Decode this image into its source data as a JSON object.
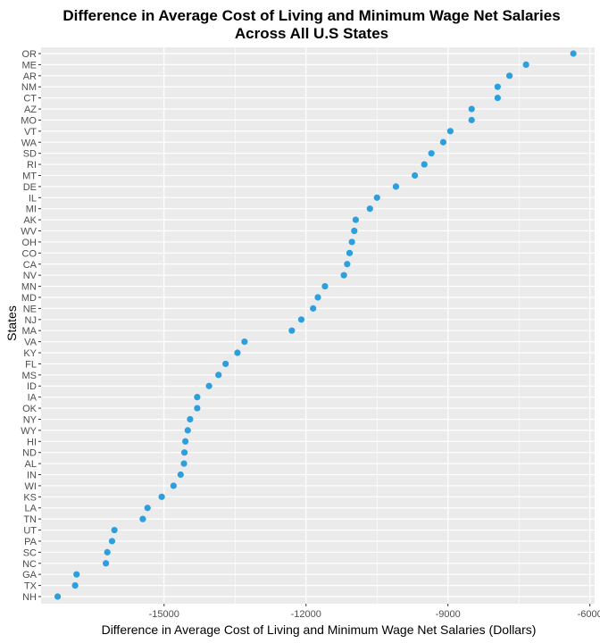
{
  "chart_data": {
    "type": "scatter",
    "title_line1": "Difference in Average Cost of Living and Minimum Wage Net Salaries",
    "title_line2": "Across All U.S States",
    "xlabel": "Difference in Average Cost of Living and Minimum Wage Net Salaries (Dollars)",
    "ylabel": "States",
    "xlim": [
      -17600,
      -5900
    ],
    "x_ticks": [
      -15000,
      -12000,
      -9000,
      -6000
    ],
    "x_tick_labels": [
      "-15000",
      "-12000",
      "-9000",
      "-6000"
    ],
    "grid": true,
    "point_color": "#2c9fdf",
    "panel_color": "#ebebeb",
    "grid_color": "#ffffff",
    "points": [
      {
        "state": "OR",
        "value": -6350
      },
      {
        "state": "ME",
        "value": -7350
      },
      {
        "state": "AR",
        "value": -7700
      },
      {
        "state": "NM",
        "value": -7950
      },
      {
        "state": "CT",
        "value": -7950
      },
      {
        "state": "AZ",
        "value": -8500
      },
      {
        "state": "MO",
        "value": -8500
      },
      {
        "state": "VT",
        "value": -8950
      },
      {
        "state": "WA",
        "value": -9100
      },
      {
        "state": "SD",
        "value": -9350
      },
      {
        "state": "RI",
        "value": -9500
      },
      {
        "state": "MT",
        "value": -9700
      },
      {
        "state": "DE",
        "value": -10100
      },
      {
        "state": "IL",
        "value": -10500
      },
      {
        "state": "MI",
        "value": -10650
      },
      {
        "state": "AK",
        "value": -10950
      },
      {
        "state": "WV",
        "value": -10980
      },
      {
        "state": "OH",
        "value": -11030
      },
      {
        "state": "CO",
        "value": -11080
      },
      {
        "state": "CA",
        "value": -11130
      },
      {
        "state": "NV",
        "value": -11200
      },
      {
        "state": "MN",
        "value": -11600
      },
      {
        "state": "MD",
        "value": -11750
      },
      {
        "state": "NE",
        "value": -11850
      },
      {
        "state": "NJ",
        "value": -12100
      },
      {
        "state": "MA",
        "value": -12300
      },
      {
        "state": "VA",
        "value": -13300
      },
      {
        "state": "KY",
        "value": -13450
      },
      {
        "state": "FL",
        "value": -13700
      },
      {
        "state": "MS",
        "value": -13850
      },
      {
        "state": "ID",
        "value": -14050
      },
      {
        "state": "IA",
        "value": -14300
      },
      {
        "state": "OK",
        "value": -14300
      },
      {
        "state": "NY",
        "value": -14450
      },
      {
        "state": "WY",
        "value": -14500
      },
      {
        "state": "HI",
        "value": -14550
      },
      {
        "state": "ND",
        "value": -14570
      },
      {
        "state": "AL",
        "value": -14580
      },
      {
        "state": "IN",
        "value": -14650
      },
      {
        "state": "WI",
        "value": -14800
      },
      {
        "state": "KS",
        "value": -15050
      },
      {
        "state": "LA",
        "value": -15350
      },
      {
        "state": "TN",
        "value": -15450
      },
      {
        "state": "UT",
        "value": -16050
      },
      {
        "state": "PA",
        "value": -16100
      },
      {
        "state": "SC",
        "value": -16200
      },
      {
        "state": "NC",
        "value": -16230
      },
      {
        "state": "GA",
        "value": -16850
      },
      {
        "state": "TX",
        "value": -16880
      },
      {
        "state": "NH",
        "value": -17250
      }
    ]
  }
}
